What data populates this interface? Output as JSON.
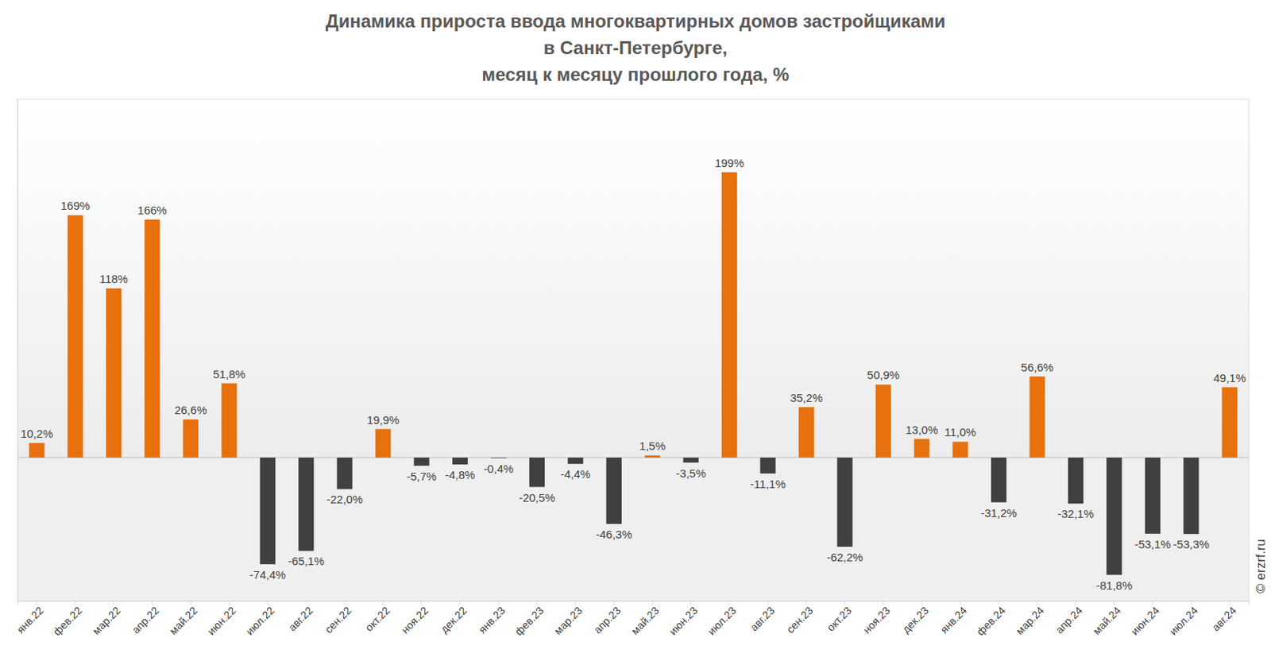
{
  "chart_data": {
    "type": "bar",
    "title": "Динамика прироста ввода многоквартирных домов застройщиками\nв Санкт-Петербурге,\nмесяц к месяцу прошлого года, %",
    "source": "© erzrf.ru",
    "categories": [
      "янв.22",
      "фев.22",
      "мар.22",
      "апр.22",
      "май.22",
      "июн.22",
      "июл.22",
      "авг.22",
      "сен.22",
      "окт.22",
      "ноя.22",
      "дек.22",
      "янв.23",
      "фев.23",
      "мар.23",
      "апр.23",
      "май.23",
      "июн.23",
      "июл.23",
      "авг.23",
      "сен.23",
      "окт.23",
      "ноя.23",
      "дек.23",
      "янв.24",
      "фев.24",
      "мар.24",
      "апр.24",
      "май.24",
      "июн.24",
      "июл.24",
      "авг.24"
    ],
    "values": [
      10.2,
      169,
      118,
      166,
      26.6,
      51.8,
      -74.4,
      -65.1,
      -22.0,
      19.9,
      -5.7,
      -4.8,
      -0.4,
      -20.5,
      -4.4,
      -46.3,
      1.5,
      -3.5,
      199,
      -11.1,
      35.2,
      -62.2,
      50.9,
      13.0,
      11.0,
      -31.2,
      56.6,
      -32.1,
      -81.8,
      -53.1,
      -53.3,
      49.1
    ],
    "value_labels": [
      "10,2%",
      "169%",
      "118%",
      "166%",
      "26,6%",
      "51,8%",
      "-74,4%",
      "-65,1%",
      "-22,0%",
      "19,9%",
      "-5,7%",
      "-4,8%",
      "-0,4%",
      "-20,5%",
      "-4,4%",
      "-46,3%",
      "1,5%",
      "-3,5%",
      "199%",
      "-11,1%",
      "35,2%",
      "-62,2%",
      "50,9%",
      "13,0%",
      "11,0%",
      "-31,2%",
      "56,6%",
      "-32,1%",
      "-81,8%",
      "-53,1%",
      "-53,3%",
      "49,1%"
    ],
    "colors": [
      "#e8700d",
      "#e8700d",
      "#e8700d",
      "#e8700d",
      "#e8700d",
      "#e8700d",
      "#404040",
      "#404040",
      "#404040",
      "#e8700d",
      "#404040",
      "#404040",
      "#404040",
      "#404040",
      "#404040",
      "#404040",
      "#e8700d",
      "#404040",
      "#e8700d",
      "#404040",
      "#e8700d",
      "#404040",
      "#e8700d",
      "#e8700d",
      "#e8700d",
      "#404040",
      "#e8700d",
      "#404040",
      "#404040",
      "#404040",
      "#404040",
      "#e8700d"
    ],
    "ylim": [
      -100,
      250
    ],
    "yticks": [
      0
    ],
    "grid": true,
    "data_labels": true,
    "tick_labels": "x"
  }
}
